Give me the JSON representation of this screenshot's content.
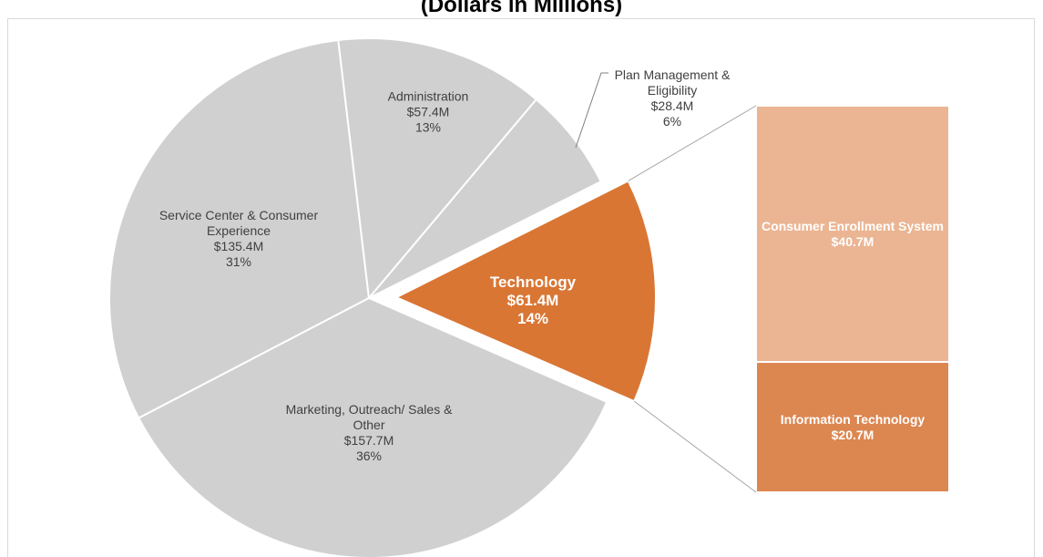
{
  "chart_data": {
    "type": "pie-of-bar",
    "title": "(Dollars in Millions)",
    "categories": [
      "Service Center & Consumer Experience",
      "Administration",
      "Plan Management & Eligibility",
      "Technology",
      "Marketing, Outreach/ Sales & Other"
    ],
    "values": [
      135.4,
      57.4,
      28.4,
      61.4,
      157.7
    ],
    "value_labels": [
      "$135.4M",
      "$57.4M",
      "$28.4M",
      "$61.4M",
      "$157.7M"
    ],
    "percents": [
      31,
      13,
      6,
      14,
      36
    ],
    "percent_labels": [
      "31%",
      "13%",
      "6%",
      "14%",
      "36%"
    ],
    "colors": [
      "#d0d0d0",
      "#d0d0d0",
      "#d0d0d0",
      "#d97634",
      "#d0d0d0"
    ],
    "breakdown": {
      "categories": [
        "Consumer Enrollment System",
        "Information Technology"
      ],
      "values": [
        40.7,
        20.7
      ],
      "value_labels": [
        "$40.7M",
        "$20.7M"
      ],
      "colors": [
        "#ebb593",
        "#dc8650"
      ]
    }
  }
}
